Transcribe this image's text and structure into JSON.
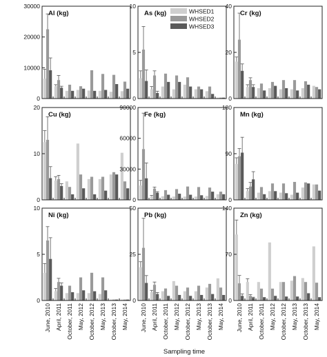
{
  "figure": {
    "xlabel": "Sampling time",
    "legend": {
      "placement": "top-right of second panel",
      "entries": [
        {
          "name": "WHSED1",
          "color": "#cfcfcf"
        },
        {
          "name": "WHSED2",
          "color": "#9a9a9a"
        },
        {
          "name": "WHSED3",
          "color": "#5a5a5a"
        }
      ]
    }
  },
  "chart_data": [
    {
      "type": "bar",
      "title": "Al (kg)",
      "categories": [
        "June, 2010",
        "April, 2011",
        "October, 2011",
        "May, 2012",
        "October, 2012",
        "May, 2013",
        "October, 2013",
        "May, 2014"
      ],
      "ylim": [
        0,
        30000
      ],
      "yticks": [
        0,
        10000,
        20000,
        30000
      ],
      "ytick_labels": [
        "0",
        "10000",
        "20000",
        "30000"
      ],
      "series": [
        {
          "name": "WHSED1",
          "values": [
            6500,
            4000,
            2500,
            2800,
            2600,
            2500,
            2200,
            2400
          ],
          "errors": [
            3000,
            500,
            0,
            0,
            0,
            0,
            0,
            0
          ]
        },
        {
          "name": "WHSED2",
          "values": [
            22500,
            6000,
            4500,
            4000,
            9200,
            8000,
            7700,
            5500
          ],
          "errors": [
            5000,
            1500,
            0,
            0,
            0,
            0,
            0,
            0
          ]
        },
        {
          "name": "WHSED3",
          "values": [
            9200,
            3500,
            2500,
            3200,
            2500,
            2800,
            4700,
            3200
          ],
          "errors": [
            4000,
            500,
            0,
            0,
            0,
            0,
            0,
            0
          ]
        }
      ]
    },
    {
      "type": "bar",
      "title": "As (kg)",
      "categories": [
        "June, 2010",
        "April, 2011",
        "October, 2011",
        "May, 2012",
        "October, 2012",
        "May, 2013",
        "October, 2013",
        "May, 2014"
      ],
      "ylim": [
        0,
        10
      ],
      "yticks": [
        0,
        5,
        10
      ],
      "ytick_labels": [
        "0",
        "5",
        "10"
      ],
      "series": [
        {
          "name": "WHSED1",
          "values": [
            2.2,
            1.0,
            1.3,
            1.0,
            1.5,
            1.0,
            0.8,
            0.1
          ],
          "errors": [
            0.8,
            0.3,
            0,
            0,
            0,
            0,
            0,
            0
          ]
        },
        {
          "name": "WHSED2",
          "values": [
            5.3,
            2.5,
            2.7,
            2.5,
            2.3,
            1.3,
            1.3,
            0.1
          ],
          "errors": [
            2.5,
            0.5,
            0,
            0,
            0,
            0,
            0,
            0
          ]
        },
        {
          "name": "WHSED3",
          "values": [
            1.9,
            0.6,
            1.8,
            1.8,
            1.3,
            1.0,
            0.5,
            0.1
          ],
          "errors": [
            1.2,
            0.2,
            0,
            0,
            0,
            0,
            0,
            0
          ]
        }
      ]
    },
    {
      "type": "bar",
      "title": "Cr (kg)",
      "categories": [
        "June, 2010",
        "April, 2011",
        "October, 2011",
        "May, 2012",
        "October, 2012",
        "May, 2013",
        "October, 2013",
        "May, 2014"
      ],
      "ylim": [
        0,
        40
      ],
      "yticks": [
        0,
        20,
        40
      ],
      "ytick_labels": [
        "0",
        "20",
        "40"
      ],
      "series": [
        {
          "name": "WHSED1",
          "values": [
            16,
            5,
            4.5,
            4.5,
            4,
            4,
            4.5,
            5.5
          ],
          "errors": [
            2,
            1,
            0,
            0,
            0,
            0,
            0,
            0
          ]
        },
        {
          "name": "WHSED2",
          "values": [
            25.5,
            8,
            6.5,
            7.2,
            8,
            8,
            7.5,
            5
          ],
          "errors": [
            11.5,
            1,
            0,
            0,
            0,
            0,
            0,
            0
          ]
        },
        {
          "name": "WHSED3",
          "values": [
            12,
            5,
            3.5,
            5.5,
            4.5,
            3.5,
            6,
            4
          ],
          "errors": [
            3,
            1,
            0,
            0,
            0,
            0,
            0,
            0
          ]
        }
      ]
    },
    {
      "type": "bar",
      "title": "Cu (kg)",
      "categories": [
        "June, 2010",
        "April, 2011",
        "October, 2011",
        "May, 2012",
        "October, 2012",
        "May, 2013",
        "October, 2013",
        "May, 2014"
      ],
      "ylim": [
        0,
        20
      ],
      "yticks": [
        0,
        10,
        20
      ],
      "ytick_labels": [
        "0",
        "10",
        "20"
      ],
      "series": [
        {
          "name": "WHSED1",
          "values": [
            12.5,
            4.2,
            4,
            12.2,
            4.5,
            4.5,
            5.5,
            10.2
          ],
          "errors": [
            2.5,
            0.8,
            0,
            0,
            0,
            0,
            0,
            0
          ]
        },
        {
          "name": "WHSED2",
          "values": [
            13,
            4.5,
            2.8,
            5.5,
            5,
            5,
            6,
            4
          ],
          "errors": [
            5,
            0.8,
            0,
            0,
            0,
            0,
            0,
            0
          ]
        },
        {
          "name": "WHSED3",
          "values": [
            4.7,
            3,
            1.2,
            2.5,
            1.2,
            2,
            5.5,
            2.5
          ],
          "errors": [
            2.5,
            0.5,
            0,
            0,
            0,
            0,
            0,
            0
          ]
        }
      ]
    },
    {
      "type": "bar",
      "title": "Fe (kg)",
      "categories": [
        "June, 2010",
        "April, 2011",
        "October, 2011",
        "May, 2012",
        "October, 2012",
        "May, 2013",
        "October, 2013",
        "May, 2014"
      ],
      "ylim": [
        0,
        90000
      ],
      "yticks": [
        0,
        30000,
        60000,
        90000
      ],
      "ytick_labels": [
        "0",
        "30000",
        "60000",
        "90000"
      ],
      "series": [
        {
          "name": "WHSED1",
          "values": [
            14000,
            3500,
            3500,
            3200,
            3200,
            3200,
            3800,
            5500
          ],
          "errors": [
            5000,
            800,
            0,
            0,
            0,
            0,
            0,
            0
          ]
        },
        {
          "name": "WHSED2",
          "values": [
            49500,
            11000,
            9500,
            10500,
            13000,
            12500,
            12000,
            8000
          ],
          "errors": [
            35000,
            1500,
            0,
            0,
            0,
            0,
            0,
            0
          ]
        },
        {
          "name": "WHSED3",
          "values": [
            21000,
            7000,
            5000,
            6000,
            5000,
            4500,
            8000,
            5500
          ],
          "errors": [
            15000,
            1000,
            0,
            0,
            0,
            0,
            0,
            0
          ]
        }
      ]
    },
    {
      "type": "bar",
      "title": "Mn (kg)",
      "categories": [
        "June, 2010",
        "April, 2011",
        "October, 2011",
        "May, 2012",
        "October, 2012",
        "May, 2013",
        "October, 2013",
        "May, 2014"
      ],
      "ylim": [
        0,
        180
      ],
      "yticks": [
        0,
        90,
        180
      ],
      "ytick_labels": [
        "0",
        "90",
        "180"
      ],
      "series": [
        {
          "name": "WHSED1",
          "values": [
            70,
            17,
            14,
            17,
            14,
            10,
            24,
            30
          ],
          "errors": [
            12,
            5,
            0,
            0,
            0,
            0,
            0,
            0
          ]
        },
        {
          "name": "WHSED2",
          "values": [
            85,
            26,
            25,
            32,
            32,
            35,
            34,
            30
          ],
          "errors": [
            15,
            8,
            0,
            0,
            0,
            0,
            0,
            0
          ]
        },
        {
          "name": "WHSED3",
          "values": [
            92,
            40,
            11,
            17,
            13,
            14,
            32,
            18
          ],
          "errors": [
            30,
            15,
            0,
            0,
            0,
            0,
            0,
            0
          ]
        }
      ]
    },
    {
      "type": "bar",
      "title": "Ni (kg)",
      "categories": [
        "June, 2010",
        "April, 2011",
        "October, 2011",
        "May, 2012",
        "October, 2012",
        "May, 2013",
        "October, 2013",
        "May, 2014"
      ],
      "ylim": [
        0,
        10
      ],
      "yticks": [
        0,
        5,
        10
      ],
      "ytick_labels": [
        "0",
        "5",
        "10"
      ],
      "series": [
        {
          "name": "WHSED1",
          "values": [
            3,
            1.0,
            0.8,
            0.8,
            0.8,
            0.7,
            0.1,
            0.1
          ],
          "errors": [
            1,
            0.3,
            0,
            0,
            0,
            0,
            0,
            0
          ]
        },
        {
          "name": "WHSED2",
          "values": [
            6.5,
            2.0,
            1.6,
            2.5,
            3.0,
            2.5,
            0.1,
            0.1
          ],
          "errors": [
            1.5,
            0.4,
            0,
            0,
            0,
            0,
            0,
            0
          ]
        },
        {
          "name": "WHSED3",
          "values": [
            4.5,
            1.6,
            0.9,
            1.1,
            1.0,
            1.1,
            0.1,
            0.1
          ],
          "errors": [
            2.3,
            0.3,
            0,
            0,
            0,
            0,
            0,
            0
          ]
        }
      ]
    },
    {
      "type": "bar",
      "title": "Pb (kg)",
      "categories": [
        "June, 2010",
        "April, 2011",
        "October, 2011",
        "May, 2012",
        "October, 2012",
        "May, 2013",
        "October, 2013",
        "May, 2014"
      ],
      "ylim": [
        0,
        50
      ],
      "yticks": [
        0,
        25,
        50
      ],
      "ytick_labels": [
        "0",
        "25",
        "50"
      ],
      "series": [
        {
          "name": "WHSED1",
          "values": [
            18,
            4.5,
            5,
            10.5,
            5,
            5,
            7,
            12
          ],
          "errors": [
            3,
            1,
            0,
            0,
            0,
            0,
            0,
            0
          ]
        },
        {
          "name": "WHSED2",
          "values": [
            28.5,
            8.5,
            6.5,
            8,
            7,
            8,
            9,
            7
          ],
          "errors": [
            16,
            1.5,
            0,
            0,
            0,
            0,
            0,
            0
          ]
        },
        {
          "name": "WHSED3",
          "values": [
            9.5,
            3.5,
            2.5,
            3,
            2.5,
            3,
            3.5,
            3
          ],
          "errors": [
            4,
            0.8,
            0,
            0,
            0,
            0,
            0,
            0
          ]
        }
      ]
    },
    {
      "type": "bar",
      "title": "Zn (kg)",
      "categories": [
        "June, 2010",
        "April, 2011",
        "October, 2011",
        "May, 2012",
        "October, 2012",
        "May, 2013",
        "October, 2013",
        "May, 2014"
      ],
      "ylim": [
        0,
        140
      ],
      "yticks": [
        0,
        70,
        140
      ],
      "ytick_labels": [
        "0",
        "70",
        "140"
      ],
      "series": [
        {
          "name": "WHSED1",
          "values": [
            100,
            28,
            28,
            88,
            28,
            30,
            34,
            82
          ],
          "errors": [
            22,
            5,
            0,
            0,
            0,
            0,
            0,
            0
          ]
        },
        {
          "name": "WHSED2",
          "values": [
            26,
            7,
            18,
            18,
            28,
            37,
            28,
            27
          ],
          "errors": [
            12,
            2,
            0,
            0,
            0,
            0,
            0,
            0
          ]
        },
        {
          "name": "WHSED3",
          "values": [
            7,
            4,
            5,
            7,
            6,
            6,
            11,
            5
          ],
          "errors": [
            3,
            1,
            0,
            0,
            0,
            0,
            0,
            0
          ]
        }
      ]
    }
  ]
}
